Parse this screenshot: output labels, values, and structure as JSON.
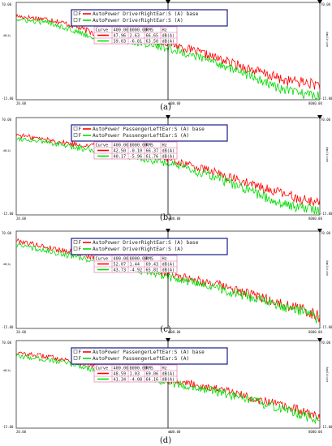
{
  "chart_data": [
    {
      "type": "line",
      "caption": "(a)",
      "y_min_label": "-15.00",
      "y_max_label": "70.00",
      "x_min_label": "20.00",
      "x_max_label": "8000.00",
      "cursor_label": "400.00",
      "x_unit": "Hz",
      "y_unit": "dB(A)",
      "y_right_label": "Amplitude",
      "ylim": [
        -15,
        70
      ],
      "xlim": [
        20,
        8000
      ],
      "legend": {
        "entries": [
          {
            "prefix": "F",
            "text": "AutoPower DriverRightEar:S (A) base",
            "color": "#ff0000"
          },
          {
            "prefix": "F",
            "text": "AutoPower DriverRightEar:S (A)",
            "color": "#00dd00"
          }
        ],
        "headers": [
          "Curve",
          "400.00",
          "8000.00",
          "RMS",
          "Hz"
        ],
        "rows": [
          {
            "color": "#ff0000",
            "v400": "47.96",
            "v8000": "2.63",
            "rms": "66.65",
            "unit": "dB(A)"
          },
          {
            "color": "#00dd00",
            "v400": "39.03",
            "v8000": "-6.81",
            "rms": "63.50",
            "unit": "dB(A)"
          }
        ]
      },
      "series": [
        {
          "color": "#ff0000",
          "x": [
            20,
            40,
            60,
            100,
            200,
            400,
            1000,
            2000,
            4000,
            6000,
            8000
          ],
          "y": [
            58,
            55,
            50,
            42,
            40,
            35,
            22,
            12,
            2,
            0,
            -2
          ]
        },
        {
          "color": "#00dd00",
          "x": [
            20,
            40,
            60,
            100,
            200,
            400,
            1000,
            2000,
            4000,
            6000,
            8000
          ],
          "y": [
            55,
            52,
            46,
            38,
            36,
            30,
            18,
            6,
            -7,
            -10,
            -12
          ]
        }
      ]
    },
    {
      "type": "line",
      "caption": "(b)",
      "y_min_label": "-15.00",
      "y_max_label": "70.00",
      "x_min_label": "20.00",
      "x_max_label": "8000.00",
      "cursor_label": "400.00",
      "x_unit": "Hz",
      "y_unit": "dB(A)",
      "y_right_label": "Amplitude",
      "ylim": [
        -15,
        70
      ],
      "xlim": [
        20,
        8000
      ],
      "legend": {
        "entries": [
          {
            "prefix": "F",
            "text": "AutoPower PassengerLeftEar:S (A) base",
            "color": "#ff0000"
          },
          {
            "prefix": "F",
            "text": "AutoPower PassengerLeftEar:S (A)",
            "color": "#00dd00"
          }
        ],
        "headers": [
          "Curve",
          "400.00",
          "8000.00",
          "RMS",
          "Hz"
        ],
        "rows": [
          {
            "color": "#ff0000",
            "v400": "42.50",
            "v8000": "-0.10",
            "rms": "66.37",
            "unit": "dB(A)"
          },
          {
            "color": "#00dd00",
            "v400": "40.17",
            "v8000": "-5.96",
            "rms": "61.76",
            "unit": "dB(A)"
          }
        ]
      },
      "series": [
        {
          "color": "#ff0000",
          "x": [
            20,
            40,
            60,
            100,
            200,
            400,
            1000,
            2000,
            4000,
            6000,
            8000
          ],
          "y": [
            55,
            50,
            47,
            45,
            40,
            34,
            22,
            12,
            3,
            -2,
            -4
          ]
        },
        {
          "color": "#00dd00",
          "x": [
            20,
            40,
            60,
            100,
            200,
            400,
            1000,
            2000,
            4000,
            6000,
            8000
          ],
          "y": [
            52,
            48,
            44,
            42,
            36,
            30,
            18,
            6,
            -6,
            -9,
            -11
          ]
        }
      ]
    },
    {
      "type": "line",
      "caption": "(c)",
      "y_min_label": "-15.00",
      "y_max_label": "70.00",
      "x_min_label": "20.00",
      "x_max_label": "8000.00",
      "cursor_label": "400.00",
      "x_unit": "Hz",
      "y_unit": "dB(A)",
      "y_right_label": "Amplitude",
      "ylim": [
        -15,
        70
      ],
      "xlim": [
        20,
        8000
      ],
      "legend": {
        "entries": [
          {
            "prefix": "F",
            "text": "AutoPower DriverRightEar:S (A) base",
            "color": "#ff0000"
          },
          {
            "prefix": "F",
            "text": "AutoPower DriverRightEar:S (A)",
            "color": "#00dd00"
          }
        ],
        "headers": [
          "Curve",
          "400.00",
          "8000.00",
          "RMS",
          "Hz"
        ],
        "rows": [
          {
            "color": "#ff0000",
            "v400": "52.07",
            "v8000": "1.44",
            "rms": "69.43",
            "unit": "dB(A)"
          },
          {
            "color": "#00dd00",
            "v400": "43.73",
            "v8000": "-4.92",
            "rms": "65.81",
            "unit": "dB(A)"
          }
        ]
      },
      "series": [
        {
          "color": "#ff0000",
          "x": [
            20,
            40,
            60,
            100,
            200,
            400,
            1000,
            2000,
            4000,
            6000,
            8000
          ],
          "y": [
            62,
            55,
            52,
            46,
            40,
            33,
            24,
            15,
            6,
            1,
            -5
          ]
        },
        {
          "color": "#00dd00",
          "x": [
            20,
            40,
            60,
            100,
            200,
            400,
            1000,
            2000,
            4000,
            6000,
            8000
          ],
          "y": [
            58,
            52,
            48,
            43,
            37,
            30,
            21,
            12,
            4,
            -1,
            -7
          ]
        }
      ]
    },
    {
      "type": "line",
      "caption": "(d)",
      "y_min_label": "-15.00",
      "y_max_label": "70.00",
      "x_min_label": "20.00",
      "x_max_label": "8000.00",
      "cursor_label": "400.00",
      "x_unit": "Hz",
      "y_unit": "dB(A)",
      "y_right_label": "Amplitude",
      "ylim": [
        -15,
        70
      ],
      "xlim": [
        20,
        8000
      ],
      "legend": {
        "entries": [
          {
            "prefix": "F",
            "text": "AutoPower PassengerLeftEar:S (A) base",
            "color": "#ff0000"
          },
          {
            "prefix": "F",
            "text": "AutoPower PassengerLeftEar:S (A)",
            "color": "#00dd00"
          }
        ],
        "headers": [
          "Curve",
          "400.00",
          "8000.00",
          "RMS",
          "Hz"
        ],
        "rows": [
          {
            "color": "#ff0000",
            "v400": "48.59",
            "v8000": "1.03",
            "rms": "69.06",
            "unit": "dB(A)"
          },
          {
            "color": "#00dd00",
            "v400": "41.34",
            "v8000": "-4.08",
            "rms": "64.16",
            "unit": "dB(A)"
          }
        ]
      },
      "series": [
        {
          "color": "#ff0000",
          "x": [
            20,
            40,
            60,
            100,
            200,
            400,
            1000,
            2000,
            4000,
            6000,
            8000
          ],
          "y": [
            58,
            54,
            50,
            44,
            38,
            32,
            24,
            15,
            6,
            0,
            -4
          ]
        },
        {
          "color": "#00dd00",
          "x": [
            20,
            40,
            60,
            100,
            200,
            400,
            1000,
            2000,
            4000,
            6000,
            8000
          ],
          "y": [
            55,
            51,
            47,
            41,
            35,
            29,
            21,
            12,
            3,
            -3,
            -8
          ]
        }
      ]
    }
  ]
}
